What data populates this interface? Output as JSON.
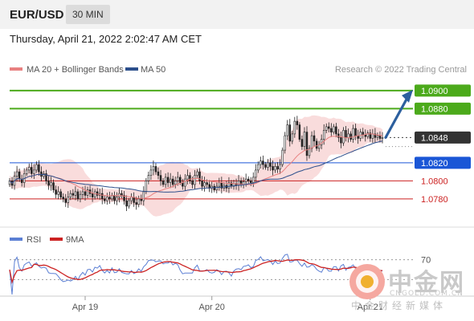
{
  "header": {
    "pair": "EUR/USD",
    "timeframe": "30 MIN",
    "datetime": "Thursday, April 21, 2022 2:02:47 AM CET"
  },
  "legend": {
    "ma20": "MA 20 + Bollinger Bands",
    "ma50": "MA 50",
    "credit": "Research © 2022 Trading Central",
    "rsi": "RSI",
    "ma9": "9MA"
  },
  "colors": {
    "ma20": "#e88080",
    "ma50": "#2c4f8c",
    "bollinger": "#f7d0d0",
    "green": "#4caa1b",
    "blue": "#1a56d6",
    "red": "#cc2222",
    "arrow": "#2c5f9e",
    "current": "#333333",
    "rsi": "#5b7fd4",
    "rsi_ma": "#cc2222"
  },
  "chart_data": {
    "type": "candlestick",
    "price_range": [
      1.0755,
      1.0915
    ],
    "current_price": 1.0848,
    "levels": [
      {
        "value": 1.09,
        "label": "1.0900",
        "color": "green",
        "style": "filled"
      },
      {
        "value": 1.088,
        "label": "1.0880",
        "color": "green",
        "style": "filled"
      },
      {
        "value": 1.0848,
        "label": "1.0848",
        "color": "current",
        "style": "filled"
      },
      {
        "value": 1.082,
        "label": "1.0820",
        "color": "blue",
        "style": "filled"
      },
      {
        "value": 1.08,
        "label": "1.0800",
        "color": "red",
        "style": "text"
      },
      {
        "value": 1.078,
        "label": "1.0780",
        "color": "red",
        "style": "text"
      }
    ],
    "closes": [
      1.08,
      1.0795,
      1.0805,
      1.081,
      1.0802,
      1.0798,
      1.0808,
      1.0812,
      1.0815,
      1.0808,
      1.0812,
      1.0818,
      1.081,
      1.0805,
      1.0808,
      1.08,
      1.0795,
      1.0798,
      1.079,
      1.0785,
      1.0788,
      1.0782,
      1.078,
      1.0776,
      1.0782,
      1.0786,
      1.0784,
      1.0788,
      1.078,
      1.0785,
      1.0788,
      1.0784,
      1.079,
      1.0786,
      1.0782,
      1.0788,
      1.0784,
      1.0786,
      1.078,
      1.0778,
      1.0782,
      1.078,
      1.0784,
      1.0778,
      1.0782,
      1.0786,
      1.0784,
      1.0778,
      1.0772,
      1.0778,
      1.0782,
      1.0776,
      1.0774,
      1.078,
      1.0778,
      1.0788,
      1.08,
      1.0806,
      1.0812,
      1.0816,
      1.081,
      1.0806,
      1.08,
      1.0796,
      1.0804,
      1.0798,
      1.0802,
      1.0796,
      1.08,
      1.0804,
      1.0798,
      1.0794,
      1.0802,
      1.0806,
      1.08,
      1.0796,
      1.0806,
      1.081,
      1.08,
      1.0794,
      1.0798,
      1.0796,
      1.0792,
      1.0794,
      1.079,
      1.0794,
      1.0798,
      1.0792,
      1.0795,
      1.0792,
      1.0798,
      1.0794,
      1.0797,
      1.0795,
      1.08,
      1.0796,
      1.0799,
      1.0802,
      1.08,
      1.0798,
      1.0804,
      1.0812,
      1.0818,
      1.0822,
      1.0818,
      1.0815,
      1.082,
      1.0816,
      1.0812,
      1.0816,
      1.0813,
      1.0818,
      1.0834,
      1.085,
      1.0862,
      1.0844,
      1.0852,
      1.0866,
      1.0862,
      1.0846,
      1.0838,
      1.0854,
      1.0828,
      1.0836,
      1.085,
      1.0844,
      1.0836,
      1.084,
      1.0846,
      1.0856,
      1.086,
      1.0858,
      1.0854,
      1.086,
      1.0852,
      1.0848,
      1.0842,
      1.0856,
      1.0848,
      1.0852,
      1.0846,
      1.0858,
      1.085,
      1.0847,
      1.0854,
      1.0851,
      1.0849,
      1.0853,
      1.0847,
      1.0852,
      1.0848,
      1.085,
      1.0847,
      1.0848
    ],
    "forecast_arrow": {
      "from": 1.0848,
      "to": 1.09
    },
    "x_labels": [
      "Apr 19",
      "Apr 20",
      "Apr 21"
    ],
    "rsi": {
      "level": 70,
      "level_label": "70"
    }
  },
  "watermark": {
    "name": "中金网",
    "url": "CNGOLD.COM.CN",
    "tagline": "中金财经新媒体"
  }
}
